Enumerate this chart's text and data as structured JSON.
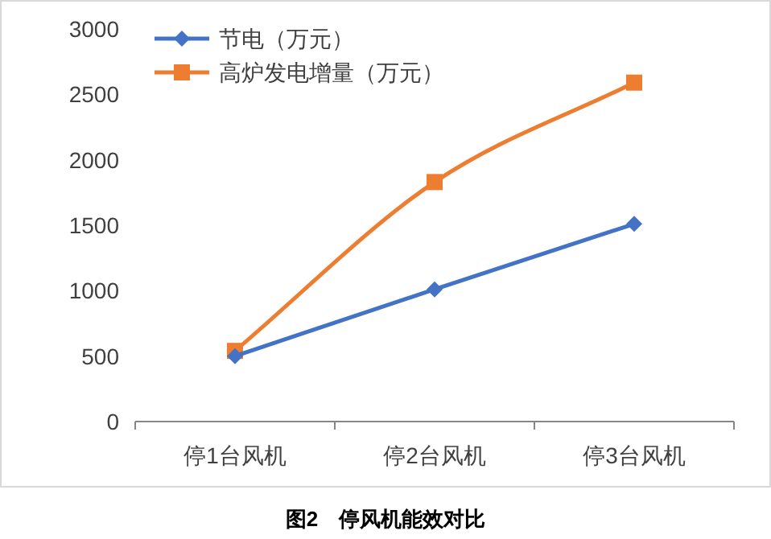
{
  "chart_data": {
    "type": "line",
    "title": "图2　停风机能效对比",
    "categories": [
      "停1台风机",
      "停2台风机",
      "停3台风机"
    ],
    "series": [
      {
        "name": "节电（万元）",
        "color": "#4472c4",
        "marker": "diamond",
        "values": [
          500,
          1010,
          1510
        ]
      },
      {
        "name": "高炉发电增量（万元）",
        "color": "#ed7d31",
        "marker": "square",
        "values": [
          540,
          1830,
          2590
        ]
      }
    ],
    "ylim": [
      0,
      3000
    ],
    "yticks": [
      0,
      500,
      1000,
      1500,
      2000,
      2500,
      3000
    ],
    "legend": "top left",
    "grid": false
  }
}
